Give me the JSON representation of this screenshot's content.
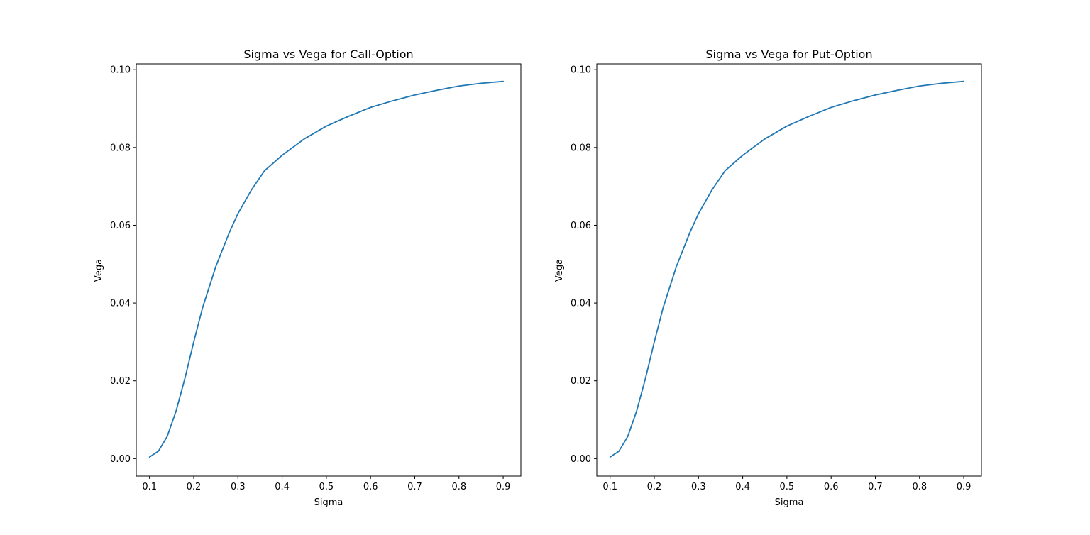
{
  "chart_data": [
    {
      "type": "line",
      "title": "Sigma vs Vega for Call-Option",
      "xlabel": "Sigma",
      "ylabel": "Vega",
      "xlim": [
        0.07,
        0.94
      ],
      "ylim": [
        -0.0045,
        0.1015
      ],
      "xticks": [
        0.1,
        0.2,
        0.3,
        0.4,
        0.5,
        0.6,
        0.7,
        0.8,
        0.9
      ],
      "xtick_labels": [
        "0.1",
        "0.2",
        "0.3",
        "0.4",
        "0.5",
        "0.6",
        "0.7",
        "0.8",
        "0.9"
      ],
      "yticks": [
        0.0,
        0.02,
        0.04,
        0.06,
        0.08,
        0.1
      ],
      "ytick_labels": [
        "0.00",
        "0.02",
        "0.04",
        "0.06",
        "0.08",
        "0.10"
      ],
      "grid": false,
      "series": [
        {
          "color": "#1f77b4",
          "x": [
            0.1,
            0.12,
            0.14,
            0.16,
            0.18,
            0.2,
            0.22,
            0.25,
            0.28,
            0.3,
            0.33,
            0.36,
            0.4,
            0.45,
            0.5,
            0.55,
            0.6,
            0.65,
            0.7,
            0.75,
            0.8,
            0.85,
            0.9
          ],
          "y": [
            0.0004,
            0.0019,
            0.0057,
            0.0122,
            0.0206,
            0.03,
            0.0388,
            0.0494,
            0.058,
            0.063,
            0.069,
            0.074,
            0.078,
            0.0822,
            0.0855,
            0.088,
            0.0903,
            0.092,
            0.0935,
            0.0947,
            0.0958,
            0.0965,
            0.097
          ]
        }
      ]
    },
    {
      "type": "line",
      "title": "Sigma vs Vega for Put-Option",
      "xlabel": "Sigma",
      "ylabel": "Vega",
      "xlim": [
        0.07,
        0.94
      ],
      "ylim": [
        -0.0045,
        0.1015
      ],
      "xticks": [
        0.1,
        0.2,
        0.3,
        0.4,
        0.5,
        0.6,
        0.7,
        0.8,
        0.9
      ],
      "xtick_labels": [
        "0.1",
        "0.2",
        "0.3",
        "0.4",
        "0.5",
        "0.6",
        "0.7",
        "0.8",
        "0.9"
      ],
      "yticks": [
        0.0,
        0.02,
        0.04,
        0.06,
        0.08,
        0.1
      ],
      "ytick_labels": [
        "0.00",
        "0.02",
        "0.04",
        "0.06",
        "0.08",
        "0.10"
      ],
      "grid": false,
      "series": [
        {
          "color": "#1f77b4",
          "x": [
            0.1,
            0.12,
            0.14,
            0.16,
            0.18,
            0.2,
            0.22,
            0.25,
            0.28,
            0.3,
            0.33,
            0.36,
            0.4,
            0.45,
            0.5,
            0.55,
            0.6,
            0.65,
            0.7,
            0.75,
            0.8,
            0.85,
            0.9
          ],
          "y": [
            0.0004,
            0.0019,
            0.0057,
            0.0122,
            0.0206,
            0.03,
            0.0388,
            0.0494,
            0.058,
            0.063,
            0.069,
            0.074,
            0.078,
            0.0822,
            0.0855,
            0.088,
            0.0903,
            0.092,
            0.0935,
            0.0947,
            0.0958,
            0.0965,
            0.097
          ]
        }
      ]
    }
  ]
}
